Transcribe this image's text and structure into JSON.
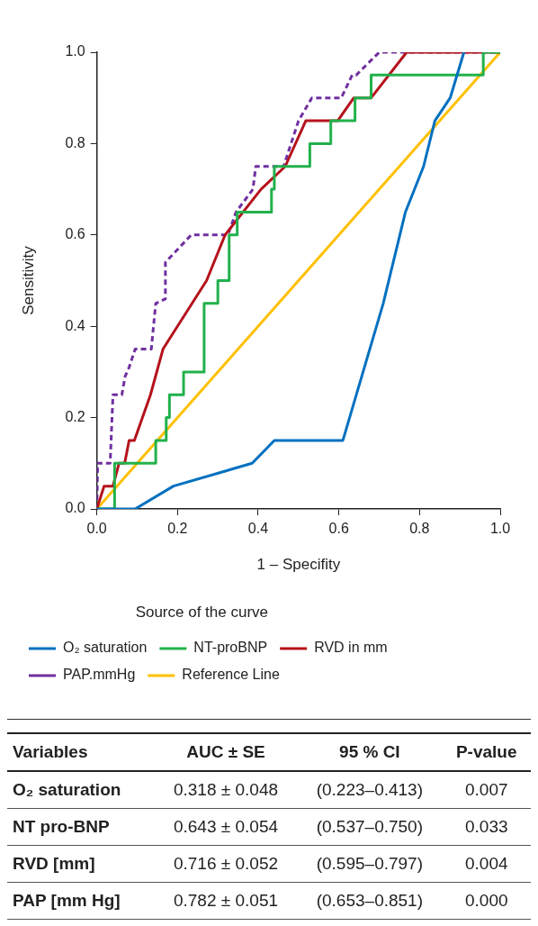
{
  "chart_data": [
    {
      "type": "line",
      "xlabel": "1 – Specifity",
      "ylabel": "Sensitivity",
      "legend": "bottom",
      "legend_title": "Source of the curve",
      "grid": false,
      "marker": "none",
      "xlim": [
        0,
        1
      ],
      "ylim": [
        0,
        1
      ],
      "xticks": [
        {
          "value": 0,
          "label": "0.0"
        },
        {
          "value": 0.2,
          "label": "0.2"
        },
        {
          "value": 0.4,
          "label": "0.4"
        },
        {
          "value": 0.6,
          "label": "0.6"
        },
        {
          "value": 0.8,
          "label": "0.8"
        },
        {
          "value": 1,
          "label": "1.0"
        }
      ],
      "yticks": [
        {
          "value": 0,
          "label": "0.0"
        },
        {
          "value": 0.2,
          "label": "0.2"
        },
        {
          "value": 0.4,
          "label": "0.4"
        },
        {
          "value": 0.6,
          "label": "0.6"
        },
        {
          "value": 0.8,
          "label": "0.8"
        },
        {
          "value": 1,
          "label": "1.0"
        }
      ],
      "series": [
        {
          "name": "O₂ saturation",
          "color": "#0070c0",
          "line_style": "solid",
          "x": [
            0,
            0.095,
            0.19,
            0.385,
            0.44,
            0.61,
            0.71,
            0.765,
            0.81,
            0.838,
            0.876,
            0.91
          ],
          "values": [
            0,
            0,
            0.05,
            0.1,
            0.15,
            0.15,
            0.45,
            0.65,
            0.75,
            0.85,
            0.9,
            1
          ]
        },
        {
          "name": "NT-proBNP",
          "color": "#22b14c",
          "line_style": "solid",
          "x": [
            0,
            0.044,
            0.044,
            0.146,
            0.146,
            0.172,
            0.172,
            0.18,
            0.18,
            0.215,
            0.215,
            0.266,
            0.266,
            0.3,
            0.3,
            0.328,
            0.328,
            0.348,
            0.348,
            0.433,
            0.433,
            0.44,
            0.44,
            0.528,
            0.528,
            0.58,
            0.58,
            0.64,
            0.64,
            0.68,
            0.68,
            0.958,
            0.958,
            1
          ],
          "values": [
            0,
            0,
            0.1,
            0.1,
            0.15,
            0.15,
            0.2,
            0.2,
            0.25,
            0.25,
            0.3,
            0.3,
            0.45,
            0.45,
            0.5,
            0.5,
            0.6,
            0.6,
            0.65,
            0.65,
            0.7,
            0.7,
            0.75,
            0.75,
            0.8,
            0.8,
            0.85,
            0.85,
            0.9,
            0.9,
            0.95,
            0.95,
            1,
            1
          ]
        },
        {
          "name": "RVD in mm",
          "color": "#b5121b",
          "line_style": "solid",
          "x": [
            0,
            0.018,
            0.04,
            0.055,
            0.069,
            0.08,
            0.093,
            0.133,
            0.164,
            0.272,
            0.318,
            0.407,
            0.467,
            0.518,
            0.597,
            0.637,
            0.68,
            0.768,
            1
          ],
          "values": [
            0,
            0.05,
            0.05,
            0.1,
            0.1,
            0.15,
            0.15,
            0.25,
            0.35,
            0.5,
            0.6,
            0.7,
            0.75,
            0.85,
            0.85,
            0.9,
            0.9,
            1,
            1
          ]
        },
        {
          "name": "PAP.mmHg",
          "color": "#7030a0",
          "line_style": "dashed",
          "x": [
            0,
            0.002,
            0.033,
            0.04,
            0.062,
            0.07,
            0.08,
            0.095,
            0.135,
            0.146,
            0.17,
            0.17,
            0.234,
            0.325,
            0.345,
            0.387,
            0.394,
            0.463,
            0.5,
            0.533,
            0.606,
            0.633,
            0.643,
            0.7,
            1
          ],
          "values": [
            0,
            0.1,
            0.1,
            0.25,
            0.25,
            0.29,
            0.31,
            0.35,
            0.35,
            0.45,
            0.46,
            0.54,
            0.6,
            0.6,
            0.65,
            0.7,
            0.75,
            0.75,
            0.85,
            0.9,
            0.9,
            0.95,
            0.95,
            1,
            1
          ]
        },
        {
          "name": "Reference Line",
          "color": "#ffc000",
          "line_style": "solid",
          "x": [
            0,
            1
          ],
          "values": [
            0,
            1
          ]
        }
      ]
    },
    {
      "type": "other",
      "categories": [
        "Variables",
        "AUC ± SE",
        "95 % CI",
        "P-value"
      ],
      "annotations": [
        "O₂ saturation",
        "0.318 ± 0.048",
        "(0.223–0.413)",
        "0.007",
        "NT pro-BNP",
        "0.643 ± 0.054",
        "(0.537–0.750)",
        "0.033",
        "RVD [mm]",
        "0.716 ± 0.052",
        "(0.595–0.797)",
        "0.004",
        "PAP [mm Hg]",
        "0.782 ± 0.051",
        "(0.653–0.851)",
        "0.000"
      ]
    }
  ]
}
